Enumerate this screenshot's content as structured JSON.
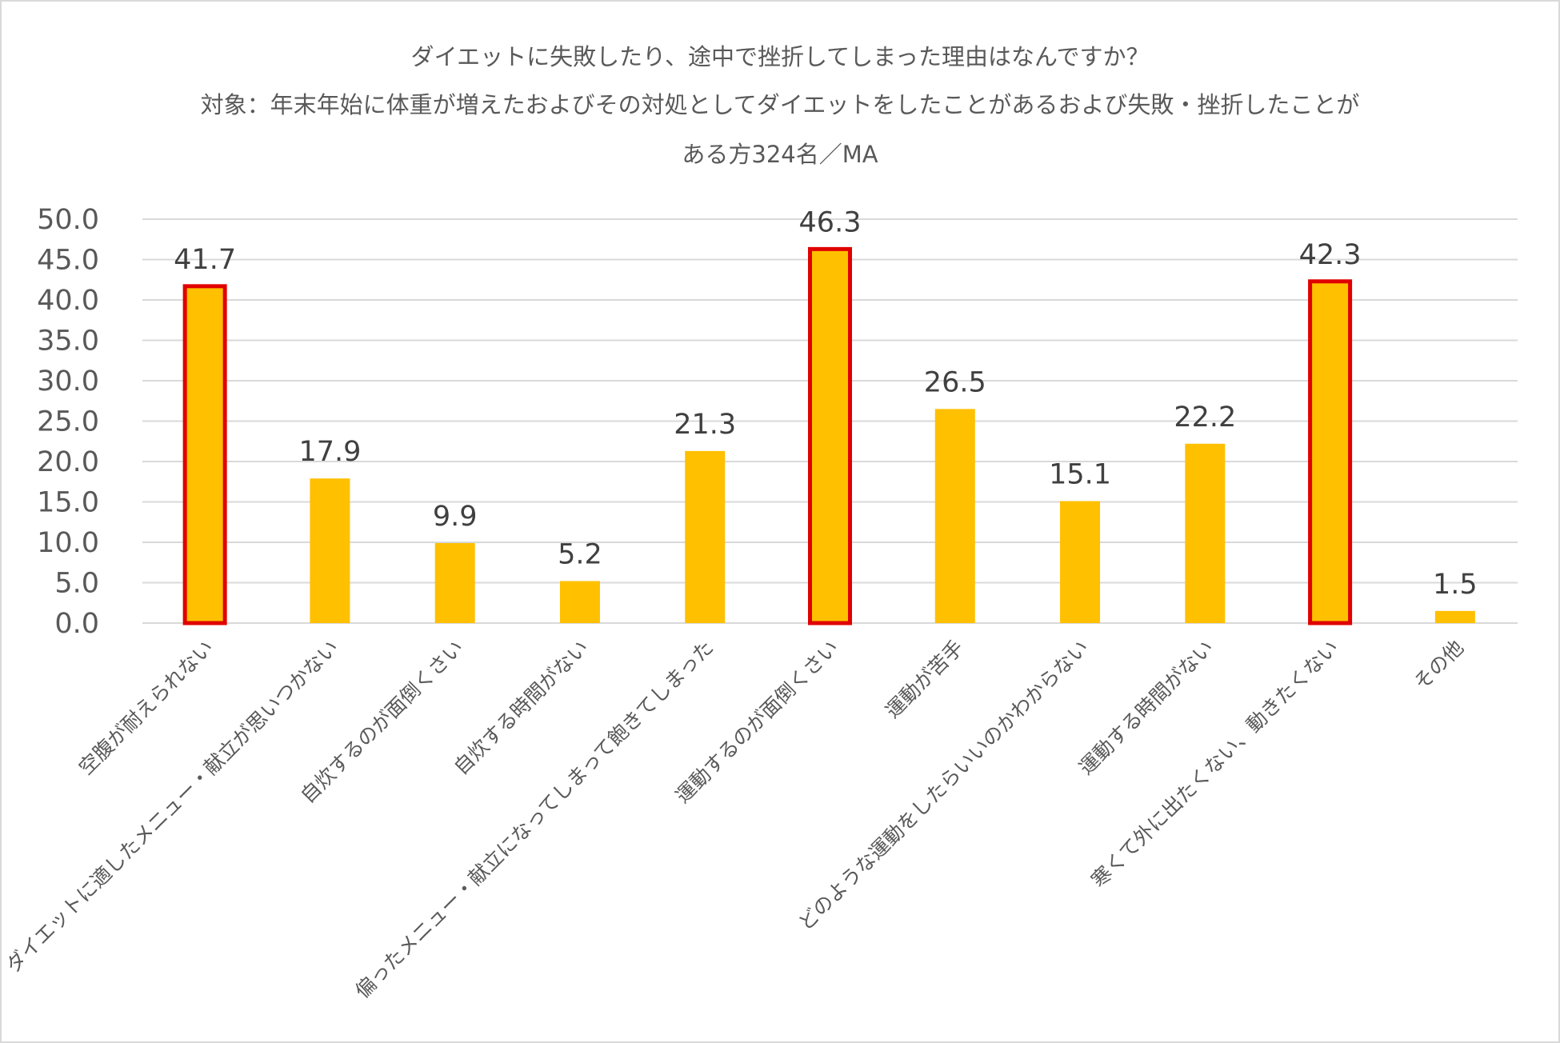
{
  "chart_data": {
    "type": "bar",
    "title": [
      "ダイエットに失敗したり、途中で挫折してしまった理由はなんですか？",
      "対象：年末年始に体重が増えたおよびその対処としてダイエットをしたことがあるおよび失敗・挫折したことが",
      "ある方324名／MA"
    ],
    "categories": [
      "空腹が耐えられない",
      "ダイエットに適したメニュー・献立が思いつかない",
      "自炊するのが面倒くさい",
      "自炊する時間がない",
      "偏ったメニュー・献立になってしまって飽きてしまった",
      "運動するのが面倒くさい",
      "運動が苦手",
      "どのような運動をしたらいいのかわからない",
      "運動する時間がない",
      "寒くて外に出たくない、動きたくない",
      "その他"
    ],
    "values": [
      41.7,
      17.9,
      9.9,
      5.2,
      21.3,
      46.3,
      26.5,
      15.1,
      22.2,
      42.3,
      1.5
    ],
    "highlighted": [
      true,
      false,
      false,
      false,
      false,
      true,
      false,
      false,
      false,
      true,
      false
    ],
    "ylim": [
      0,
      50
    ],
    "yticks": [
      "0.0",
      "5.0",
      "10.0",
      "15.0",
      "20.0",
      "25.0",
      "30.0",
      "35.0",
      "40.0",
      "45.0",
      "50.0"
    ],
    "grid": true,
    "legend": "none",
    "colors": {
      "bar": "#FFC000",
      "highlight_border": "#E00000",
      "grid": "#D9D9D9",
      "text": "#595959"
    }
  }
}
